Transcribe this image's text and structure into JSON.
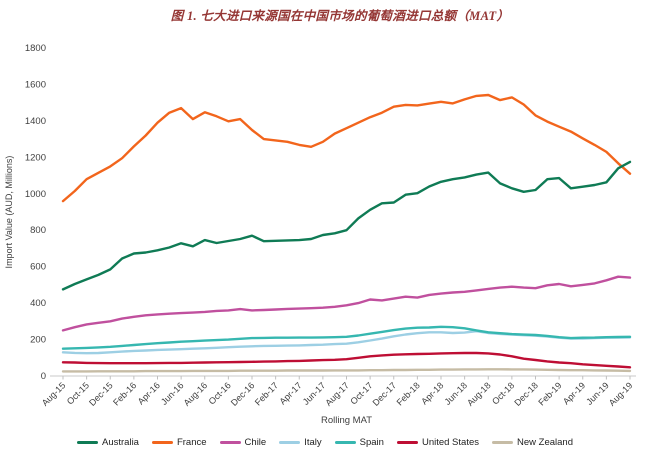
{
  "figure": {
    "title": "图 1. 七大进口来源国在中国市场的葡萄酒进口总额（MAT）",
    "title_color": "#953735"
  },
  "chart_data": {
    "type": "line",
    "title": "图 1. 七大进口来源国在中国市场的葡萄酒进口总额（MAT）",
    "xlabel": "Rolling MAT",
    "ylabel": "Import Value (AUD, Millions)",
    "ylim": [
      0,
      1800
    ],
    "y_ticks": [
      0,
      200,
      400,
      600,
      800,
      1000,
      1200,
      1400,
      1600,
      1800
    ],
    "grid": false,
    "legend_position": "bottom",
    "axis_color": "#c9c9c9",
    "tick_color": "#bfbfbf",
    "label_color": "#404040",
    "x": [
      "Aug-15",
      "Sep-15",
      "Oct-15",
      "Nov-15",
      "Dec-15",
      "Jan-16",
      "Feb-16",
      "Mar-16",
      "Apr-16",
      "May-16",
      "Jun-16",
      "Jul-16",
      "Aug-16",
      "Sep-16",
      "Oct-16",
      "Nov-16",
      "Dec-16",
      "Jan-17",
      "Feb-17",
      "Mar-17",
      "Apr-17",
      "May-17",
      "Jun-17",
      "Jul-17",
      "Aug-17",
      "Sep-17",
      "Oct-17",
      "Nov-17",
      "Dec-17",
      "Jan-18",
      "Feb-18",
      "Mar-18",
      "Apr-18",
      "May-18",
      "Jun-18",
      "Jul-18",
      "Aug-18",
      "Sep-18",
      "Oct-18",
      "Nov-18",
      "Dec-18",
      "Jan-19",
      "Feb-19",
      "Mar-19",
      "Apr-19",
      "May-19",
      "Jun-19",
      "Jul-19",
      "Aug-19"
    ],
    "x_tick_labels": [
      "Aug-15",
      "Oct-15",
      "Dec-15",
      "Feb-16",
      "Apr-16",
      "Jun-16",
      "Aug-16",
      "Oct-16",
      "Dec-16",
      "Feb-17",
      "Apr-17",
      "Jun-17",
      "Aug-17",
      "Oct-17",
      "Dec-17",
      "Feb-18",
      "Apr-18",
      "Jun-18",
      "Aug-18",
      "Oct-18",
      "Dec-18",
      "Feb-19",
      "Apr-19",
      "Jun-19",
      "Aug-19"
    ],
    "series": [
      {
        "name": "Australia",
        "color": "#0F7B55",
        "values": [
          475,
          505,
          530,
          555,
          585,
          645,
          672,
          678,
          690,
          705,
          728,
          712,
          746,
          730,
          741,
          752,
          770,
          740,
          742,
          744,
          746,
          752,
          774,
          783,
          800,
          865,
          912,
          948,
          952,
          995,
          1003,
          1040,
          1066,
          1080,
          1090,
          1105,
          1116,
          1057,
          1030,
          1011,
          1021,
          1080,
          1086,
          1030,
          1039,
          1048,
          1063,
          1140,
          1175
        ]
      },
      {
        "name": "France",
        "color": "#F2651C",
        "values": [
          960,
          1015,
          1080,
          1115,
          1150,
          1195,
          1260,
          1320,
          1390,
          1445,
          1470,
          1410,
          1447,
          1425,
          1398,
          1410,
          1350,
          1300,
          1293,
          1285,
          1268,
          1258,
          1285,
          1330,
          1360,
          1390,
          1420,
          1445,
          1478,
          1488,
          1485,
          1495,
          1505,
          1496,
          1518,
          1537,
          1542,
          1514,
          1529,
          1490,
          1430,
          1396,
          1368,
          1341,
          1304,
          1268,
          1230,
          1167,
          1110
        ]
      },
      {
        "name": "Chile",
        "color": "#C0509E",
        "values": [
          250,
          268,
          283,
          292,
          300,
          315,
          325,
          333,
          338,
          342,
          345,
          348,
          352,
          357,
          360,
          367,
          360,
          362,
          365,
          368,
          370,
          372,
          375,
          380,
          388,
          400,
          420,
          415,
          425,
          435,
          430,
          445,
          452,
          458,
          462,
          470,
          478,
          485,
          490,
          485,
          482,
          498,
          505,
          492,
          500,
          508,
          525,
          545,
          540
        ]
      },
      {
        "name": "Italy",
        "color": "#9DCFE4",
        "values": [
          130,
          127,
          125,
          126,
          130,
          134,
          138,
          140,
          143,
          145,
          147,
          150,
          152,
          155,
          158,
          161,
          163,
          165,
          166,
          167,
          168,
          170,
          172,
          175,
          177,
          185,
          195,
          205,
          218,
          228,
          235,
          240,
          240,
          236,
          238,
          246,
          236,
          231,
          227,
          224,
          221,
          217,
          210,
          205,
          206,
          208,
          210,
          211,
          212
        ]
      },
      {
        "name": "Spain",
        "color": "#36B7B0",
        "values": [
          150,
          152,
          154,
          157,
          160,
          165,
          170,
          175,
          180,
          184,
          188,
          191,
          194,
          197,
          200,
          204,
          208,
          209,
          210,
          210,
          211,
          211,
          212,
          213,
          215,
          222,
          232,
          242,
          252,
          260,
          265,
          266,
          270,
          268,
          262,
          250,
          240,
          235,
          230,
          227,
          225,
          220,
          213,
          208,
          210,
          211,
          213,
          214,
          215
        ]
      },
      {
        "name": "United States",
        "color": "#BE0E34",
        "values": [
          75,
          74,
          72,
          71,
          70,
          70,
          70,
          70,
          71,
          72,
          72,
          73,
          74,
          75,
          76,
          77,
          78,
          79,
          80,
          82,
          83,
          85,
          87,
          89,
          92,
          100,
          108,
          113,
          117,
          119,
          121,
          122,
          124,
          125,
          126,
          126,
          124,
          118,
          108,
          95,
          88,
          80,
          74,
          70,
          64,
          60,
          56,
          52,
          48
        ]
      },
      {
        "name": "New Zealand",
        "color": "#C6BCA5",
        "values": [
          25,
          25,
          25,
          26,
          26,
          26,
          26,
          27,
          27,
          27,
          27,
          28,
          28,
          28,
          28,
          29,
          29,
          29,
          29,
          30,
          30,
          30,
          30,
          31,
          31,
          31,
          32,
          32,
          33,
          33,
          34,
          34,
          35,
          35,
          36,
          36,
          37,
          37,
          36,
          36,
          35,
          34,
          33,
          32,
          32,
          31,
          30,
          29,
          28
        ]
      }
    ]
  }
}
